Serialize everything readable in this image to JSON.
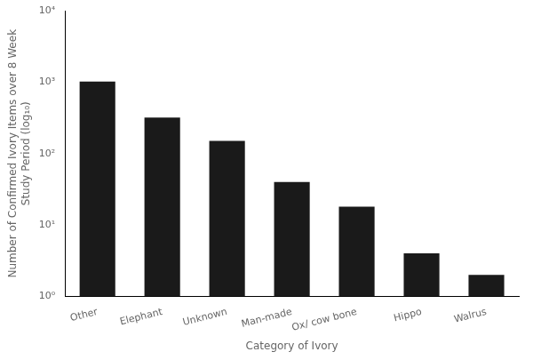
{
  "chart_data": {
    "type": "bar",
    "categories": [
      "Other",
      "Elephant",
      "Unknown",
      "Man-made",
      "Ox/ cow bone",
      "Hippo",
      "Walrus"
    ],
    "values": [
      1020,
      320,
      150,
      40,
      18,
      4,
      2
    ],
    "color": "#1a1a1a",
    "x_label": "Category of Ivory",
    "y_label": [
      "Number of Confirmed Ivory Items over 8 Week",
      "Study Period (log₁₀)"
    ],
    "log": "y",
    "ylim": [
      1,
      10000
    ],
    "yticks": [
      {
        "value": 1,
        "label": "10⁰"
      },
      {
        "value": 10,
        "label": "10¹"
      },
      {
        "value": 100,
        "label": "10²"
      },
      {
        "value": 1000,
        "label": "10³"
      },
      {
        "value": 10000,
        "label": "10⁴"
      }
    ],
    "grid": false
  }
}
